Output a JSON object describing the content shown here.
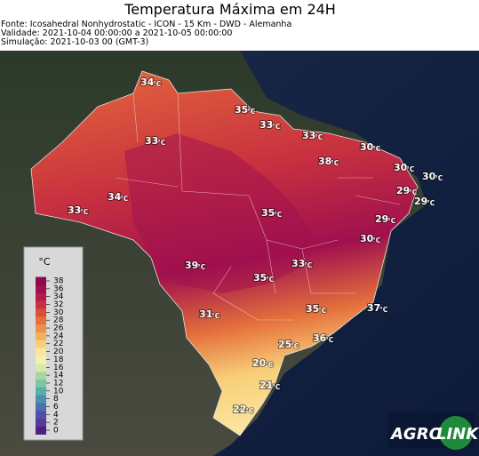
{
  "header": {
    "title": "Temperatura Máxima em 24H",
    "lines": [
      "Fonte: Icosahedral Nonhydrostatic - ICON - 15 Km - DWD - Alemanha",
      "Validade: 2021-10-04 00:00:00 a 2021-10-05 00:00:00",
      "Simulação: 2021-10-03 00 (GMT-3)"
    ]
  },
  "map": {
    "unit": "°C",
    "labels": [
      34,
      35,
      33,
      33,
      33,
      30,
      38,
      30,
      30,
      29,
      29,
      34,
      33,
      35,
      29,
      30,
      33,
      39,
      35,
      37,
      35,
      31,
      36,
      25,
      20,
      21,
      22
    ]
  },
  "colorbar": {
    "title": "°C",
    "ticks": [
      0,
      2,
      4,
      6,
      8,
      10,
      12,
      14,
      16,
      18,
      20,
      22,
      24,
      26,
      28,
      30,
      32,
      34,
      36,
      38
    ],
    "colors": [
      "#4a2080",
      "#5a3a98",
      "#5050a8",
      "#4a6eb0",
      "#4a90b0",
      "#5aaea8",
      "#7cc6a2",
      "#a8d8a0",
      "#d8eaa8",
      "#f5f0b0",
      "#fbe6a0",
      "#f8cf78",
      "#f4b05a",
      "#ee9048",
      "#e4703c",
      "#d9503a",
      "#c8313f",
      "#b51a4a",
      "#a0104e",
      "#8a0a4a"
    ]
  },
  "logo": {
    "left": "AGRO",
    "right": "LINK"
  }
}
